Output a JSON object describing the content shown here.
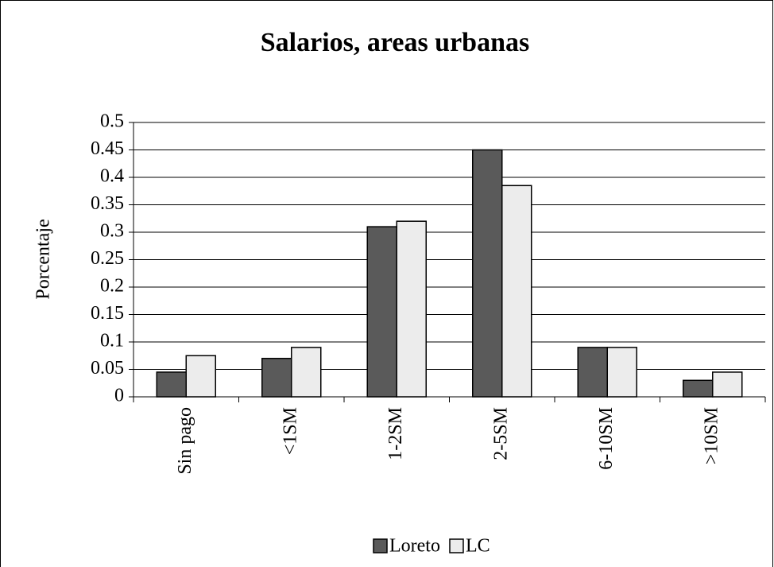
{
  "chart_data": {
    "type": "bar",
    "title": "Salarios, areas urbanas",
    "y_label": "Porcentaje",
    "categories": [
      "Sin pago",
      "<1SM",
      "1-2SM",
      "2-5SM",
      "6-10SM",
      ">10SM"
    ],
    "series": [
      {
        "name": "Loreto",
        "color": "#5a5a5a",
        "values": [
          0.045,
          0.07,
          0.31,
          0.45,
          0.09,
          0.03
        ]
      },
      {
        "name": "LC",
        "color": "#ececec",
        "values": [
          0.075,
          0.09,
          0.32,
          0.385,
          0.09,
          0.045
        ]
      }
    ],
    "ylim": [
      0,
      0.5
    ],
    "yticks": [
      0,
      0.05,
      0.1,
      0.15,
      0.2,
      0.25,
      0.3,
      0.35,
      0.4,
      0.45,
      0.5
    ],
    "grid": true,
    "legend": "bottom"
  }
}
